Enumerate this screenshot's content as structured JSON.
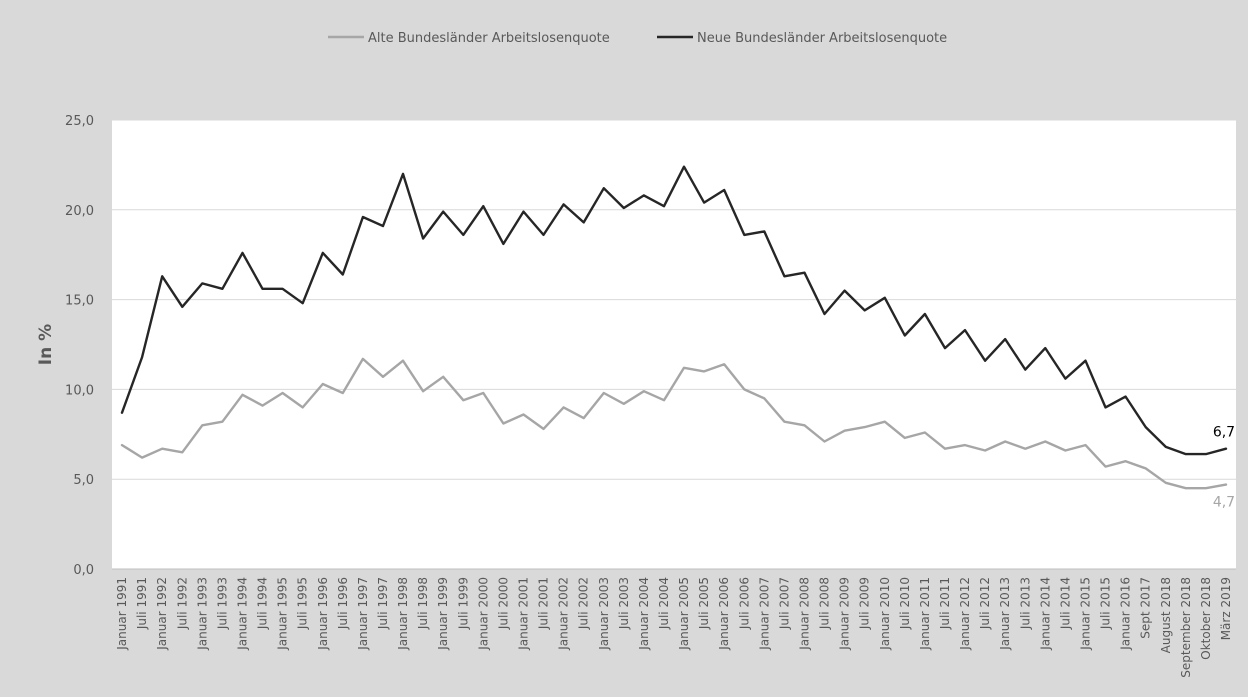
{
  "colors": {
    "background": "#d9d9d9",
    "plot_background": "#ffffff",
    "grid": "#d9d9d9",
    "alte": "#a6a6a6",
    "neue": "#262626",
    "text": "#595959"
  },
  "chart_data": {
    "type": "line",
    "ylabel": "In %",
    "ylim": [
      0,
      25
    ],
    "yticks": [
      "0,0",
      "5,0",
      "10,0",
      "15,0",
      "20,0",
      "25,0"
    ],
    "grid": true,
    "legend_position": "top",
    "categories": [
      "Januar 1991",
      "Juli 1991",
      "Januar 1992",
      "Juli 1992",
      "Januar 1993",
      "Juli 1993",
      "Januar 1994",
      "Juli 1994",
      "Januar 1995",
      "Juli 1995",
      "Januar 1996",
      "Juli 1996",
      "Januar 1997",
      "Juli 1997",
      "Januar 1998",
      "Juli 1998",
      "Januar 1999",
      "Juli 1999",
      "Januar 2000",
      "Juli 2000",
      "Januar 2001",
      "Juli 2001",
      "Januar 2002",
      "Juli 2002",
      "Januar 2003",
      "Juli 2003",
      "Januar 2004",
      "Juli 2004",
      "Januar 2005",
      "Juli 2005",
      "Januar 2006",
      "Juli 2006",
      "Januar 2007",
      "Juli 2007",
      "Januar 2008",
      "Juli 2008",
      "Januar 2009",
      "Juli 2009",
      "Januar 2010",
      "Juli 2010",
      "Januar 2011",
      "Juli 2011",
      "Januar 2012",
      "Juli 2012",
      "Januar 2013",
      "Juli 2013",
      "Januar 2014",
      "Juli 2014",
      "Januar 2015",
      "Juli 2015",
      "Januar 2016",
      "Sept 2017",
      "August 2018",
      "September 2018",
      "Oktober 2018",
      "März 2019"
    ],
    "series": [
      {
        "name": "Alte Bundesländer Arbeitslosenquote",
        "color": "#a6a6a6",
        "values": [
          6.9,
          6.2,
          6.7,
          6.5,
          8.0,
          8.2,
          9.7,
          9.1,
          9.8,
          9.0,
          10.3,
          9.8,
          11.7,
          10.7,
          11.6,
          9.9,
          10.7,
          9.4,
          9.8,
          8.1,
          8.6,
          7.8,
          9.0,
          8.4,
          9.8,
          9.2,
          9.9,
          9.4,
          11.2,
          11.0,
          11.4,
          10.0,
          9.5,
          8.2,
          8.0,
          7.1,
          7.7,
          7.9,
          8.2,
          7.3,
          7.6,
          6.7,
          6.9,
          6.6,
          7.1,
          6.7,
          7.1,
          6.6,
          6.9,
          5.7,
          6.0,
          5.6,
          4.8,
          4.5,
          4.5,
          4.7
        ],
        "end_label": "4,7"
      },
      {
        "name": "Neue Bundesländer Arbeitslosenquote",
        "color": "#262626",
        "values": [
          8.7,
          11.8,
          16.3,
          14.6,
          15.9,
          15.6,
          17.6,
          15.6,
          15.6,
          14.8,
          17.6,
          16.4,
          19.6,
          19.1,
          22.0,
          18.4,
          19.9,
          18.6,
          20.2,
          18.1,
          19.9,
          18.6,
          20.3,
          19.3,
          21.2,
          20.1,
          20.8,
          20.2,
          22.4,
          20.4,
          21.1,
          18.6,
          18.8,
          16.3,
          16.5,
          14.2,
          15.5,
          14.4,
          15.1,
          13.0,
          14.2,
          12.3,
          13.3,
          11.6,
          12.8,
          11.1,
          12.3,
          10.6,
          11.6,
          9.0,
          9.6,
          7.9,
          6.8,
          6.4,
          6.4,
          6.7
        ],
        "end_label": "6,7"
      }
    ]
  }
}
